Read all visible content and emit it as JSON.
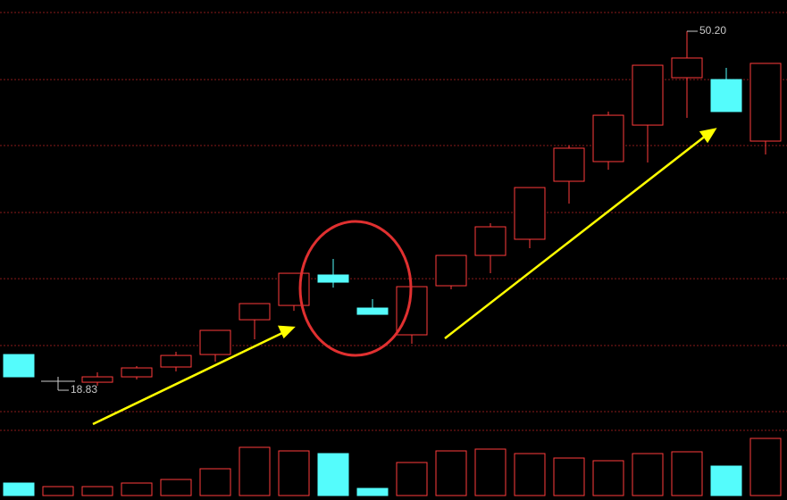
{
  "chart_data": {
    "type": "candlestick",
    "open": [
      21.95,
      19.61,
      19.53,
      20.0,
      20.86,
      21.95,
      24.99,
      26.24,
      28.9,
      26.01,
      23.67,
      27.96,
      30.61,
      32.02,
      37.09,
      38.81,
      42.0,
      46.14,
      45.98,
      40.6
    ],
    "high": [
      21.95,
      20.0,
      20.39,
      20.94,
      22.19,
      24.06,
      26.4,
      29.05,
      30.3,
      26.79,
      27.88,
      30.61,
      33.42,
      36.54,
      40.21,
      43.18,
      47.23,
      50.2,
      47.0,
      47.39
    ],
    "low": [
      20.0,
      18.83,
      19.22,
      19.77,
      20.47,
      21.33,
      23.28,
      25.77,
      27.8,
      25.46,
      22.89,
      27.65,
      29.05,
      31.24,
      35.14,
      38.1,
      38.73,
      42.63,
      43.18,
      39.43
    ],
    "close": [
      20.0,
      19.61,
      20.0,
      20.78,
      21.87,
      24.06,
      26.4,
      29.05,
      28.27,
      25.46,
      27.88,
      30.61,
      33.11,
      36.54,
      39.98,
      42.86,
      47.23,
      47.86,
      43.18,
      47.39
    ],
    "volume": [
      14,
      10,
      10,
      14,
      18,
      30,
      54,
      50,
      47,
      8,
      37,
      50,
      52,
      47,
      42,
      39,
      47,
      49,
      33,
      64
    ],
    "up_color": "#ff3b3b",
    "down_color": "#54fcfc",
    "flat_color": "#cccccc",
    "ylim": [
      16.96,
      52.93
    ],
    "yticks": [
      16.96,
      22.73,
      28.58,
      34.36,
      40.21,
      45.98,
      51.84
    ],
    "grid": true,
    "annotations": [
      "50.20",
      "18.83"
    ]
  }
}
